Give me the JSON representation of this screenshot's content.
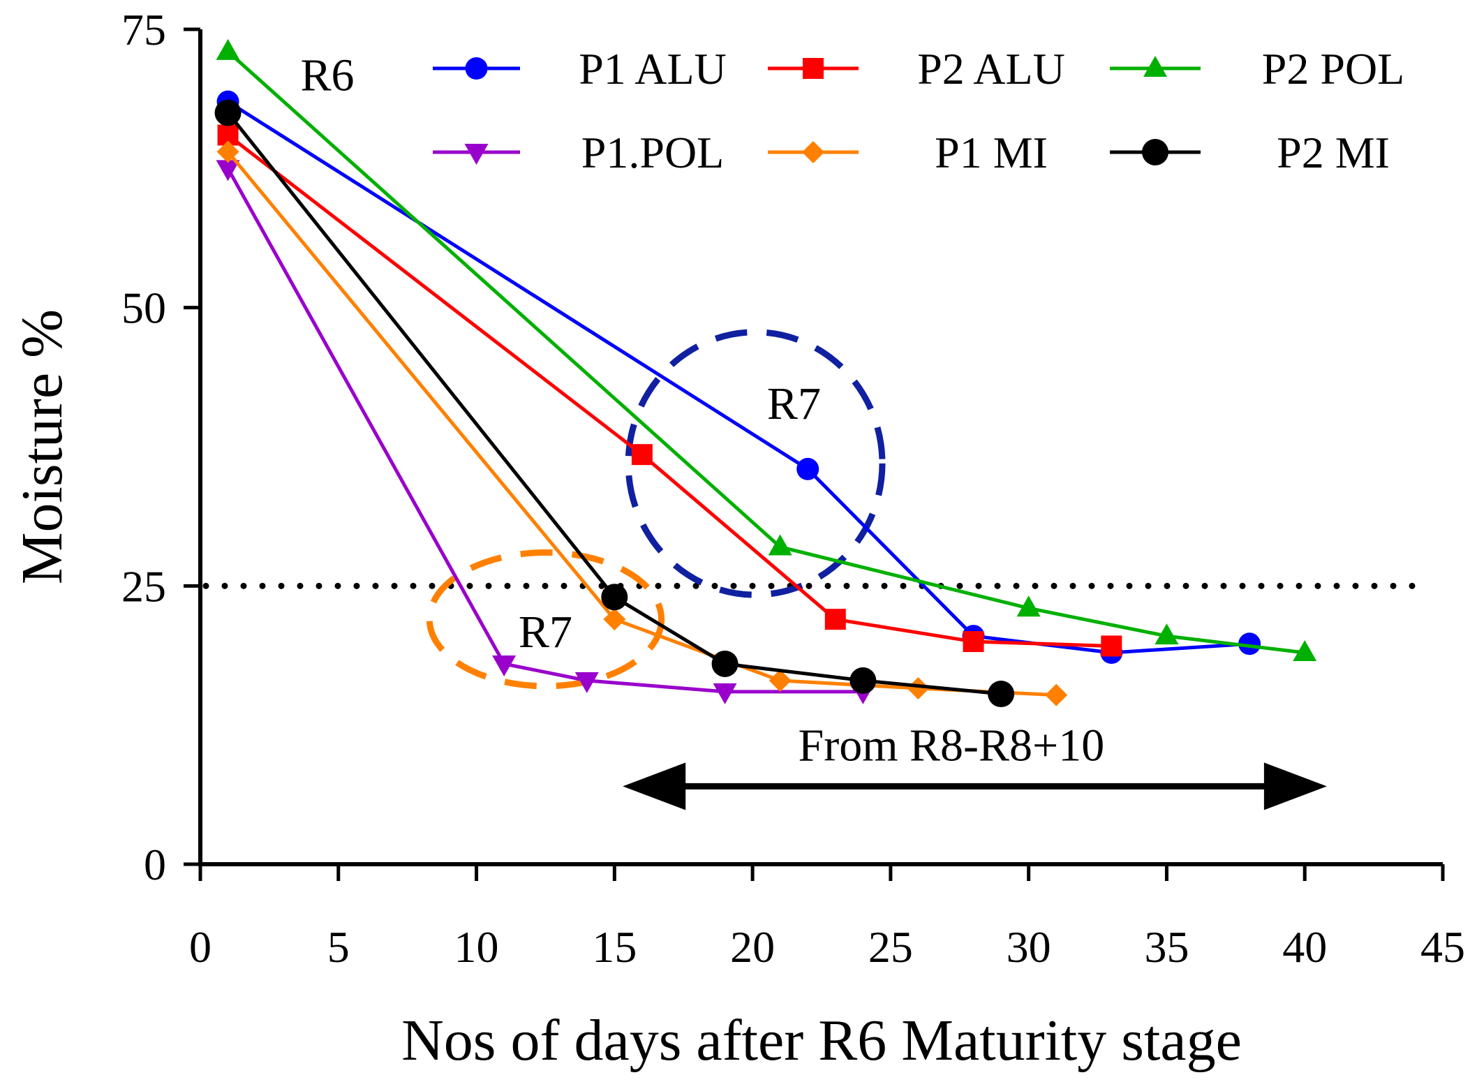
{
  "chart_data": {
    "type": "line",
    "title": "",
    "xlabel": "Nos of days after R6 Maturity stage",
    "ylabel": "Moisture %",
    "xlim": [
      0,
      45
    ],
    "ylim": [
      0,
      75
    ],
    "xticks": [
      0,
      5,
      10,
      15,
      20,
      25,
      30,
      35,
      40,
      45
    ],
    "yticks": [
      0,
      25,
      50,
      75
    ],
    "grid": false,
    "legend_position": "top",
    "reference_line": {
      "y": 25,
      "style": "dotted"
    },
    "series": [
      {
        "name": "P1 ALU",
        "color": "#0000ff",
        "marker": "circle",
        "x": [
          1,
          22,
          28,
          33,
          38
        ],
        "y": [
          68.5,
          35.5,
          20.5,
          19.0,
          19.8
        ]
      },
      {
        "name": "P2 ALU",
        "color": "#ff0000",
        "marker": "square",
        "x": [
          1,
          16,
          23,
          28,
          33
        ],
        "y": [
          65.5,
          36.8,
          22.0,
          20.0,
          19.6
        ]
      },
      {
        "name": "P2 POL",
        "color": "#00b000",
        "marker": "triangle-up",
        "x": [
          1,
          21,
          30,
          35,
          40
        ],
        "y": [
          73.0,
          28.5,
          23.0,
          20.5,
          19.0
        ]
      },
      {
        "name": "P1.POL",
        "color": "#9900cc",
        "marker": "triangle-down",
        "x": [
          1,
          11,
          14,
          19,
          24
        ],
        "y": [
          62.5,
          18.0,
          16.5,
          15.5,
          15.5
        ]
      },
      {
        "name": "P1 MI",
        "color": "#ff8000",
        "marker": "diamond",
        "x": [
          1,
          15,
          21,
          26,
          31
        ],
        "y": [
          64.0,
          22.0,
          16.5,
          15.8,
          15.2
        ]
      },
      {
        "name": "P2 MI",
        "color": "#000000",
        "marker": "circle-large",
        "x": [
          1,
          15,
          19,
          24,
          29
        ],
        "y": [
          67.5,
          24.0,
          18.0,
          16.5,
          15.3
        ]
      }
    ],
    "annotations": [
      {
        "text": "R6",
        "x": 4.6,
        "y": 69.5
      },
      {
        "text": "R7",
        "x": 21.5,
        "y": 40.0
      },
      {
        "text": "R7",
        "x": 12.5,
        "y": 19.5
      },
      {
        "text": "From R8-R8+10",
        "x": 27.2,
        "y": 9.3
      }
    ],
    "ellipses": [
      {
        "name": "R7 region (blue)",
        "color": "#1020a0",
        "cx": 20.1,
        "cy": 36.0,
        "rx": 4.6,
        "ry": 11.8
      },
      {
        "name": "R7 region (orange)",
        "color": "#ff8000",
        "cx": 12.5,
        "cy": 22.0,
        "rx": 4.2,
        "ry": 6.0
      }
    ],
    "range_arrow": {
      "label": "From R8-R8+10",
      "x_start": 15.3,
      "x_end": 40.8,
      "y": 7.0
    }
  }
}
